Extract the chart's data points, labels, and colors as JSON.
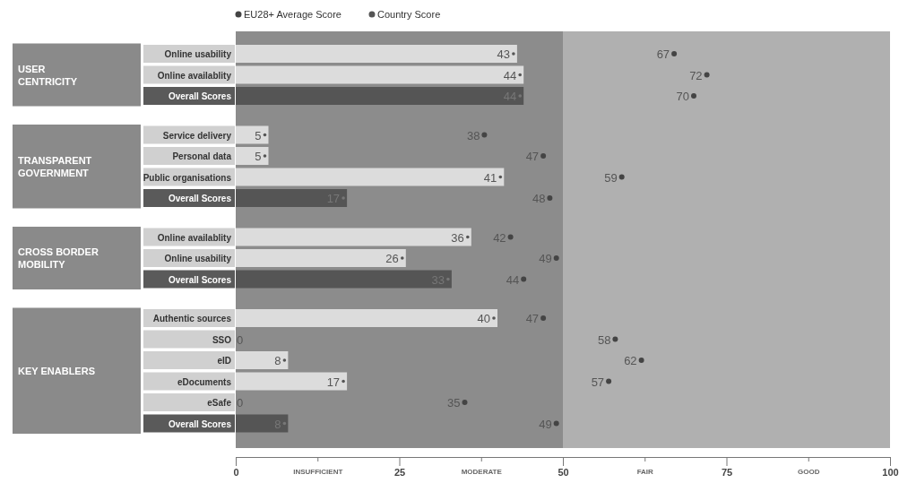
{
  "chart_data": {
    "type": "bar",
    "orientation": "horizontal",
    "categories": [
      "Online usability",
      "Online availablity",
      "Overall Scores",
      "Service delivery",
      "Personal data",
      "Public organisations",
      "Overall Scores",
      "Online availablity",
      "Online usability",
      "Overall Scores",
      "Authentic sources",
      "SSO",
      "eID",
      "eDocuments",
      "eSafe",
      "Overall Scores"
    ],
    "series": [
      {
        "name": "EU28+ Average Score",
        "type": "scatter",
        "color": "#444444",
        "values": [
          67,
          72,
          70,
          38,
          47,
          59,
          48,
          42,
          49,
          44,
          47,
          58,
          62,
          57,
          35,
          49
        ]
      },
      {
        "name": "Country Score",
        "color": "#555555",
        "colors": [
          "#dcdcdc",
          "#dcdcdc",
          "#555555",
          "#dcdcdc",
          "#dcdcdc",
          "#dcdcdc",
          "#555555",
          "#dcdcdc",
          "#dcdcdc",
          "#555555",
          "#dcdcdc",
          "#dcdcdc",
          "#dcdcdc",
          "#dcdcdc",
          "#dcdcdc",
          "#555555"
        ],
        "values": [
          43,
          44,
          44,
          5,
          5,
          41,
          17,
          36,
          26,
          33,
          40,
          0,
          8,
          17,
          0,
          8
        ]
      }
    ],
    "xlim": [
      0,
      100
    ],
    "xticks": [
      0,
      {
        "value": 12.5,
        "label": "INSUFFICIENT"
      },
      25,
      {
        "value": 37.5,
        "label": "MODERATE"
      },
      50,
      {
        "value": 62.5,
        "label": "FAIR"
      },
      75,
      {
        "value": 87.5,
        "label": "GOOD"
      },
      100
    ],
    "bands": [
      {
        "axis": "x",
        "from": 0,
        "to": 50,
        "color": "#8c8c8c"
      },
      {
        "axis": "x",
        "from": 50,
        "to": 100,
        "color": "#b0b0b0"
      }
    ],
    "annotations": [
      "USER CENTRICITY",
      "TRANSPARENT GOVERNMENT",
      "CROSS BORDER MOBILITY",
      "KEY ENABLERS"
    ],
    "data_labels": true,
    "legend": "top"
  }
}
